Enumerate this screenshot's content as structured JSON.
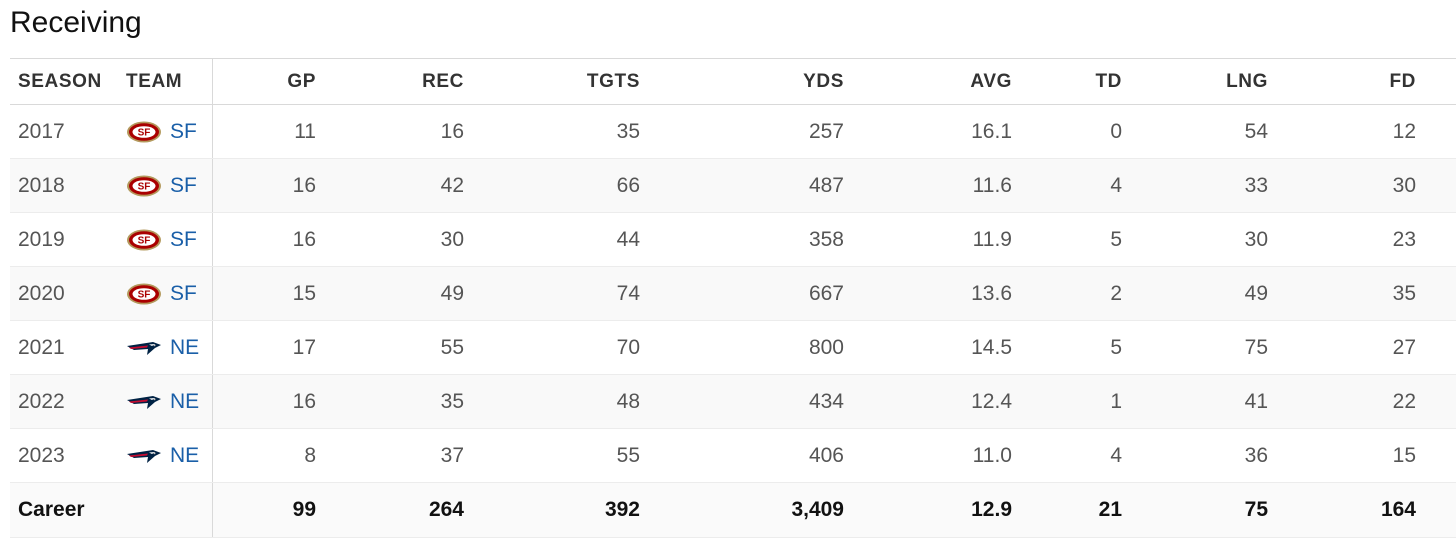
{
  "title": "Receiving",
  "columns": {
    "season": "SEASON",
    "team": "TEAM",
    "gp": "GP",
    "rec": "REC",
    "tgts": "TGTS",
    "yds": "YDS",
    "avg": "AVG",
    "td": "TD",
    "lng": "LNG",
    "fd": "FD"
  },
  "rows": [
    {
      "season": "2017",
      "team": "SF",
      "logo": "49ers-logo-icon",
      "gp": "11",
      "rec": "16",
      "tgts": "35",
      "yds": "257",
      "avg": "16.1",
      "td": "0",
      "lng": "54",
      "fd": "12"
    },
    {
      "season": "2018",
      "team": "SF",
      "logo": "49ers-logo-icon",
      "gp": "16",
      "rec": "42",
      "tgts": "66",
      "yds": "487",
      "avg": "11.6",
      "td": "4",
      "lng": "33",
      "fd": "30"
    },
    {
      "season": "2019",
      "team": "SF",
      "logo": "49ers-logo-icon",
      "gp": "16",
      "rec": "30",
      "tgts": "44",
      "yds": "358",
      "avg": "11.9",
      "td": "5",
      "lng": "30",
      "fd": "23"
    },
    {
      "season": "2020",
      "team": "SF",
      "logo": "49ers-logo-icon",
      "gp": "15",
      "rec": "49",
      "tgts": "74",
      "yds": "667",
      "avg": "13.6",
      "td": "2",
      "lng": "49",
      "fd": "35"
    },
    {
      "season": "2021",
      "team": "NE",
      "logo": "patriots-logo-icon",
      "gp": "17",
      "rec": "55",
      "tgts": "70",
      "yds": "800",
      "avg": "14.5",
      "td": "5",
      "lng": "75",
      "fd": "27"
    },
    {
      "season": "2022",
      "team": "NE",
      "logo": "patriots-logo-icon",
      "gp": "16",
      "rec": "35",
      "tgts": "48",
      "yds": "434",
      "avg": "12.4",
      "td": "1",
      "lng": "41",
      "fd": "22"
    },
    {
      "season": "2023",
      "team": "NE",
      "logo": "patriots-logo-icon",
      "gp": "8",
      "rec": "37",
      "tgts": "55",
      "yds": "406",
      "avg": "11.0",
      "td": "4",
      "lng": "36",
      "fd": "15"
    }
  ],
  "career": {
    "label": "Career",
    "gp": "99",
    "rec": "264",
    "tgts": "392",
    "yds": "3,409",
    "avg": "12.9",
    "td": "21",
    "lng": "75",
    "fd": "164"
  },
  "colors": {
    "team_link": "#1a5fa8",
    "sf_red": "#aa0000",
    "sf_gold": "#b3995d",
    "ne_navy": "#002244",
    "ne_red": "#c60c30"
  }
}
